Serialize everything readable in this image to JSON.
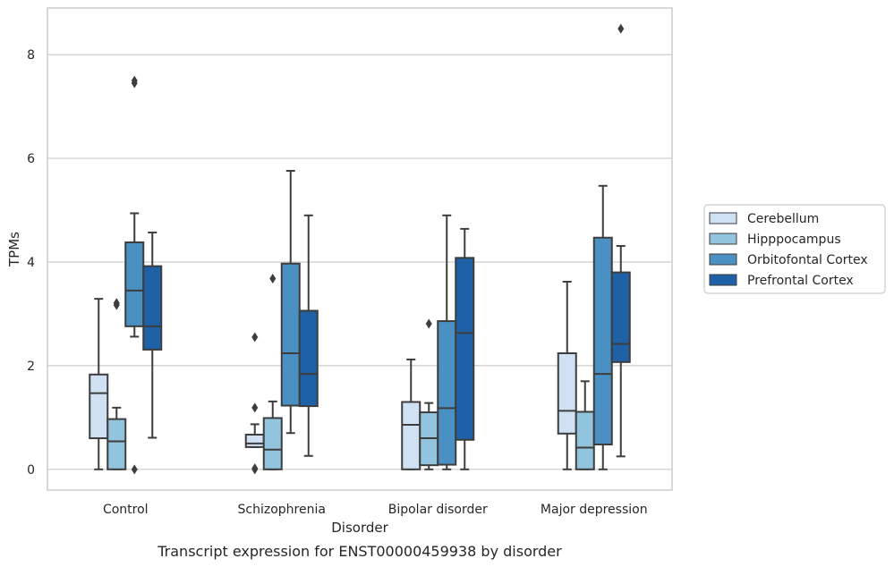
{
  "caption": "Transcript expression for ENST00000459938 by disorder",
  "chart_data": {
    "type": "box",
    "xlabel": "Disorder",
    "ylabel": "TPMs",
    "ylim": [
      -0.4,
      8.9
    ],
    "yticks": [
      0,
      2,
      4,
      6,
      8
    ],
    "grid": "horizontal",
    "legend_position": "right",
    "categories": [
      "Control",
      "Schizophrenia",
      "Bipolar disorder",
      "Major depression"
    ],
    "series": [
      {
        "name": "Cerebellum",
        "color": "#cfe1f2",
        "boxes": [
          {
            "whisker_low": 0.0,
            "q1": 0.6,
            "median": 1.47,
            "q3": 1.83,
            "whisker_high": 3.29,
            "outliers": []
          },
          {
            "whisker_low": 0.43,
            "q1": 0.43,
            "median": 0.5,
            "q3": 0.67,
            "whisker_high": 0.87,
            "outliers": [
              0.0,
              0.02,
              1.19,
              2.55
            ]
          },
          {
            "whisker_low": 0.0,
            "q1": 0.0,
            "median": 0.86,
            "q3": 1.3,
            "whisker_high": 2.12,
            "outliers": []
          },
          {
            "whisker_low": 0.0,
            "q1": 0.69,
            "median": 1.13,
            "q3": 2.24,
            "whisker_high": 3.62,
            "outliers": []
          }
        ]
      },
      {
        "name": "Hipppocampus",
        "color": "#93c4de",
        "boxes": [
          {
            "whisker_low": 0.0,
            "q1": 0.0,
            "median": 0.54,
            "q3": 0.97,
            "whisker_high": 1.19,
            "outliers": [
              3.17,
              3.21
            ]
          },
          {
            "whisker_low": 0.0,
            "q1": 0.0,
            "median": 0.38,
            "q3": 0.99,
            "whisker_high": 1.31,
            "outliers": [
              3.68
            ]
          },
          {
            "whisker_low": 0.0,
            "q1": 0.08,
            "median": 0.6,
            "q3": 1.1,
            "whisker_high": 1.28,
            "outliers": [
              2.81
            ]
          },
          {
            "whisker_low": 0.0,
            "q1": 0.0,
            "median": 0.42,
            "q3": 1.11,
            "whisker_high": 1.7,
            "outliers": []
          }
        ]
      },
      {
        "name": "Orbitofontal Cortex",
        "color": "#4a90c3",
        "boxes": [
          {
            "whisker_low": 2.56,
            "q1": 2.76,
            "median": 3.45,
            "q3": 4.38,
            "whisker_high": 4.94,
            "outliers": [
              0.0,
              7.45,
              7.5
            ]
          },
          {
            "whisker_low": 0.7,
            "q1": 1.23,
            "median": 2.24,
            "q3": 3.97,
            "whisker_high": 5.76,
            "outliers": []
          },
          {
            "whisker_low": 0.0,
            "q1": 0.09,
            "median": 1.18,
            "q3": 2.86,
            "whisker_high": 4.9,
            "outliers": []
          },
          {
            "whisker_low": 0.0,
            "q1": 0.48,
            "median": 1.84,
            "q3": 4.47,
            "whisker_high": 5.47,
            "outliers": []
          }
        ]
      },
      {
        "name": "Prefrontal Cortex",
        "color": "#1f61a6",
        "boxes": [
          {
            "whisker_low": 0.61,
            "q1": 2.31,
            "median": 2.76,
            "q3": 3.92,
            "whisker_high": 4.57,
            "outliers": []
          },
          {
            "whisker_low": 0.26,
            "q1": 1.22,
            "median": 1.84,
            "q3": 3.06,
            "whisker_high": 4.9,
            "outliers": []
          },
          {
            "whisker_low": 0.0,
            "q1": 0.57,
            "median": 2.63,
            "q3": 4.08,
            "whisker_high": 4.64,
            "outliers": []
          },
          {
            "whisker_low": 0.25,
            "q1": 2.07,
            "median": 2.42,
            "q3": 3.8,
            "whisker_high": 4.31,
            "outliers": [
              8.5
            ]
          }
        ]
      }
    ]
  }
}
